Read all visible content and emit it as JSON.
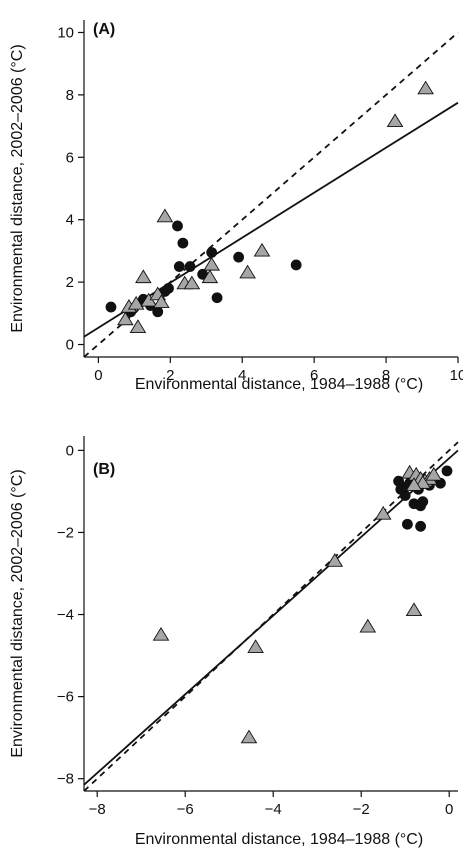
{
  "chart_data": [
    {
      "type": "scatter",
      "panel_label": "(A)",
      "xlabel": "Environmental distance, 1984–1988 (°C)",
      "ylabel": "Environmental distance, 2002–2006 (°C)",
      "xlim": [
        -0.4,
        10
      ],
      "ylim": [
        -0.4,
        10.4
      ],
      "xticks": [
        0,
        2,
        4,
        6,
        8,
        10
      ],
      "yticks": [
        0,
        2,
        4,
        6,
        8,
        10
      ],
      "xtick_labels": [
        "0",
        "2",
        "4",
        "6",
        "8",
        "10"
      ],
      "ytick_labels": [
        "0",
        "2",
        "4",
        "6",
        "8",
        "10"
      ],
      "grid": false,
      "lines": {
        "identity": {
          "style": "dashed",
          "x": [
            -0.4,
            10
          ],
          "y": [
            -0.4,
            10
          ]
        },
        "fit": {
          "style": "solid",
          "x": [
            -0.4,
            10
          ],
          "y": [
            0.25,
            7.75
          ]
        }
      },
      "series": [
        {
          "marker": "circle",
          "color": "#111111",
          "points": [
            [
              0.35,
              1.2
            ],
            [
              0.9,
              1.05
            ],
            [
              1.25,
              1.45
            ],
            [
              1.45,
              1.25
            ],
            [
              1.65,
              1.05
            ],
            [
              1.85,
              1.7
            ],
            [
              1.95,
              1.8
            ],
            [
              2.2,
              3.8
            ],
            [
              2.35,
              3.25
            ],
            [
              2.25,
              2.5
            ],
            [
              2.55,
              2.5
            ],
            [
              2.9,
              2.25
            ],
            [
              3.15,
              2.95
            ],
            [
              3.3,
              1.5
            ],
            [
              3.9,
              2.8
            ],
            [
              5.5,
              2.55
            ]
          ]
        },
        {
          "marker": "triangle",
          "color": "#a6a6a6",
          "points": [
            [
              0.75,
              0.8
            ],
            [
              0.85,
              1.2
            ],
            [
              1.05,
              1.3
            ],
            [
              1.1,
              0.55
            ],
            [
              1.25,
              2.15
            ],
            [
              1.4,
              1.4
            ],
            [
              1.65,
              1.6
            ],
            [
              1.75,
              1.35
            ],
            [
              1.85,
              4.1
            ],
            [
              2.4,
              1.95
            ],
            [
              2.6,
              1.95
            ],
            [
              3.1,
              2.15
            ],
            [
              3.15,
              2.55
            ],
            [
              4.15,
              2.3
            ],
            [
              4.55,
              3.0
            ],
            [
              8.25,
              7.15
            ],
            [
              9.1,
              8.2
            ]
          ]
        }
      ]
    },
    {
      "type": "scatter",
      "panel_label": "(B)",
      "xlabel": "Environmental distance, 1984–1988 (°C)",
      "ylabel": "Environmental distance, 2002–2006 (°C)",
      "xlim": [
        -8.3,
        0.2
      ],
      "ylim": [
        -8.3,
        0.35
      ],
      "xticks": [
        -8,
        -6,
        -4,
        -2,
        0
      ],
      "yticks": [
        0,
        -2,
        -4,
        -6,
        -8
      ],
      "xtick_labels": [
        "−8",
        "−6",
        "−4",
        "−2",
        "0"
      ],
      "ytick_labels": [
        "0",
        "−2",
        "−4",
        "−6",
        "−8"
      ],
      "grid": false,
      "lines": {
        "identity": {
          "style": "dashed",
          "x": [
            -8.3,
            0.2
          ],
          "y": [
            -8.3,
            0.2
          ]
        },
        "fit": {
          "style": "solid",
          "x": [
            -8.3,
            0.2
          ],
          "y": [
            -8.15,
            0.0
          ]
        }
      },
      "series": [
        {
          "marker": "circle",
          "color": "#111111",
          "points": [
            [
              -1.15,
              -0.75
            ],
            [
              -1.05,
              -0.9
            ],
            [
              -1.0,
              -1.1
            ],
            [
              -0.9,
              -0.8
            ],
            [
              -0.8,
              -1.3
            ],
            [
              -0.7,
              -0.95
            ],
            [
              -0.65,
              -1.35
            ],
            [
              -0.6,
              -1.25
            ],
            [
              -0.95,
              -1.8
            ],
            [
              -0.65,
              -1.85
            ],
            [
              -0.2,
              -0.8
            ],
            [
              -0.05,
              -0.5
            ],
            [
              -0.45,
              -0.85
            ],
            [
              -1.1,
              -0.95
            ]
          ]
        },
        {
          "marker": "triangle",
          "color": "#a6a6a6",
          "points": [
            [
              -0.9,
              -0.55
            ],
            [
              -0.75,
              -0.6
            ],
            [
              -0.65,
              -0.7
            ],
            [
              -0.55,
              -0.75
            ],
            [
              -0.45,
              -0.7
            ],
            [
              -0.35,
              -0.6
            ],
            [
              -0.6,
              -0.8
            ],
            [
              -0.8,
              -0.85
            ],
            [
              -1.5,
              -1.55
            ],
            [
              -2.6,
              -2.7
            ],
            [
              -1.85,
              -4.3
            ],
            [
              -0.8,
              -3.9
            ],
            [
              -6.55,
              -4.5
            ],
            [
              -4.4,
              -4.8
            ],
            [
              -4.55,
              -7.0
            ]
          ]
        }
      ]
    }
  ]
}
